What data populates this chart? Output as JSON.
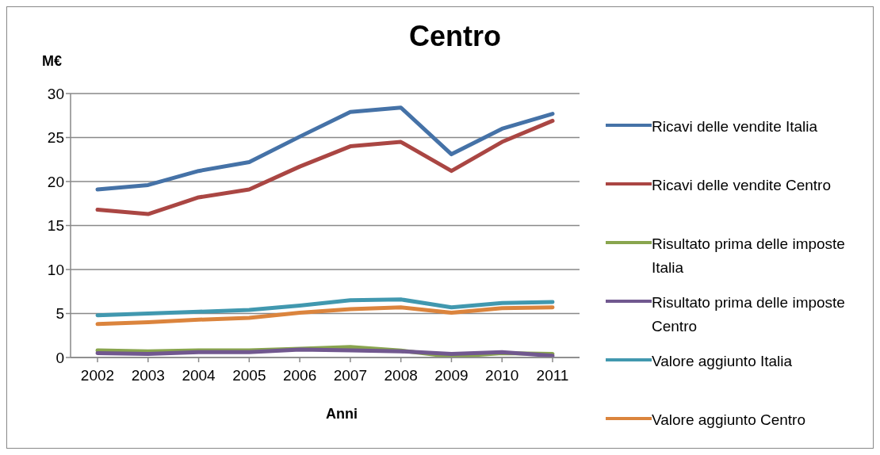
{
  "chart_data": {
    "type": "line",
    "title": "Centro",
    "ylabel": "M€",
    "xlabel": "Anni",
    "categories": [
      "2002",
      "2003",
      "2004",
      "2005",
      "2006",
      "2007",
      "2008",
      "2009",
      "2010",
      "2011"
    ],
    "series": [
      {
        "name": "Ricavi delle vendite Italia",
        "color": "#4572a7",
        "values": [
          19.1,
          19.6,
          21.2,
          22.2,
          25.1,
          27.9,
          28.4,
          23.1,
          26.0,
          27.7
        ]
      },
      {
        "name": "Ricavi delle vendite Centro",
        "color": "#aa4643",
        "values": [
          16.8,
          16.3,
          18.2,
          19.1,
          21.7,
          24.0,
          24.5,
          21.2,
          24.5,
          26.9
        ]
      },
      {
        "name": "Risultato prima delle imposte Italia",
        "color": "#89a54e",
        "values": [
          0.8,
          0.7,
          0.8,
          0.8,
          1.0,
          1.2,
          0.8,
          0.1,
          0.5,
          0.4
        ]
      },
      {
        "name": "Risultato prima delle imposte Centro",
        "color": "#71588f",
        "values": [
          0.5,
          0.4,
          0.6,
          0.6,
          0.9,
          0.8,
          0.7,
          0.4,
          0.6,
          0.2
        ]
      },
      {
        "name": "Valore aggiunto Italia",
        "color": "#4198af",
        "values": [
          4.8,
          5.0,
          5.2,
          5.4,
          5.9,
          6.5,
          6.6,
          5.7,
          6.2,
          6.3
        ]
      },
      {
        "name": "Valore aggiunto Centro",
        "color": "#db843d",
        "values": [
          3.8,
          4.0,
          4.3,
          4.5,
          5.1,
          5.5,
          5.7,
          5.1,
          5.6,
          5.7
        ]
      }
    ],
    "ylim": [
      0,
      30
    ],
    "yticks": [
      0,
      5,
      10,
      15,
      20,
      25,
      30
    ],
    "grid": "y",
    "legend": "right",
    "marker": "none",
    "line_style": "solid"
  }
}
